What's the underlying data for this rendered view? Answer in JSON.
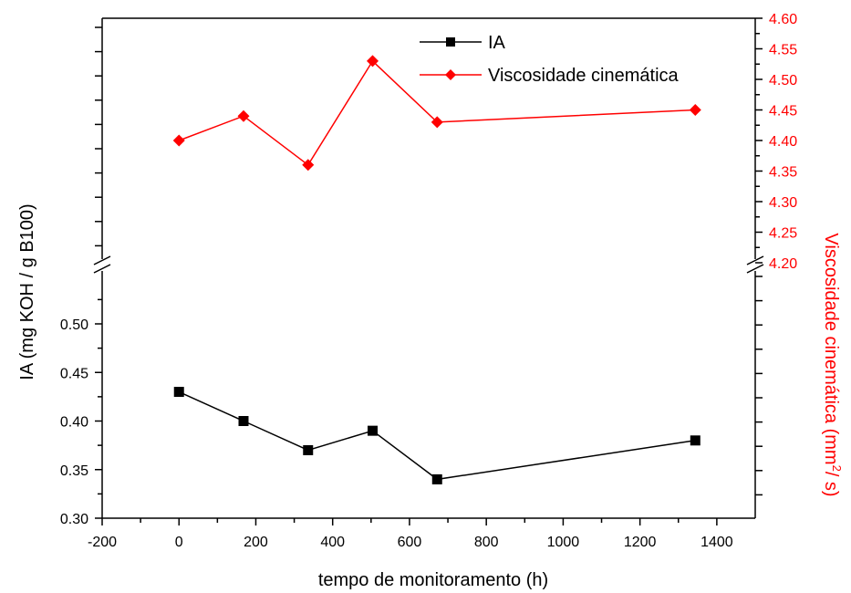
{
  "chart_data": {
    "type": "line",
    "xlabel": "tempo de monitoramento (h)",
    "xlim": [
      -200,
      1500
    ],
    "x_ticks": [
      "-200",
      "0",
      "200",
      "400",
      "600",
      "800",
      "1000",
      "1200",
      "1400"
    ],
    "x_tick_values": [
      -200,
      0,
      200,
      400,
      600,
      800,
      1000,
      1200,
      1400
    ],
    "ylabel_left": "IA (mg KOH / g B100)",
    "ylim_left": [
      0.3,
      0.55
    ],
    "y_ticks_left": [
      "0.30",
      "0.35",
      "0.40",
      "0.45",
      "0.50"
    ],
    "y_tick_values_left": [
      0.3,
      0.35,
      0.4,
      0.45,
      0.5
    ],
    "ylabel_right_prefix": "Viscosidade cinemática (mm",
    "ylabel_right_sup": "2",
    "ylabel_right_suffix": "/ s)",
    "ylim_right": [
      4.2,
      4.6
    ],
    "y_ticks_right": [
      "4.20",
      "4.25",
      "4.30",
      "4.35",
      "4.40",
      "4.45",
      "4.50",
      "4.55",
      "4.60"
    ],
    "y_tick_values_right": [
      4.2,
      4.25,
      4.3,
      4.35,
      4.4,
      4.45,
      4.5,
      4.55,
      4.6
    ],
    "legend_placement": "top-center",
    "axis_break": true,
    "series": [
      {
        "name": "IA",
        "axis": "left",
        "marker": "square",
        "color": "#000000",
        "x": [
          0,
          168,
          336,
          504,
          672,
          1344
        ],
        "y": [
          0.43,
          0.4,
          0.37,
          0.39,
          0.34,
          0.38
        ]
      },
      {
        "name": "Viscosidade cinemática",
        "axis": "right",
        "marker": "diamond",
        "color": "#ff0000",
        "x": [
          0,
          168,
          336,
          504,
          672,
          1344
        ],
        "y": [
          4.4,
          4.44,
          4.36,
          4.53,
          4.43,
          4.45
        ]
      }
    ]
  }
}
